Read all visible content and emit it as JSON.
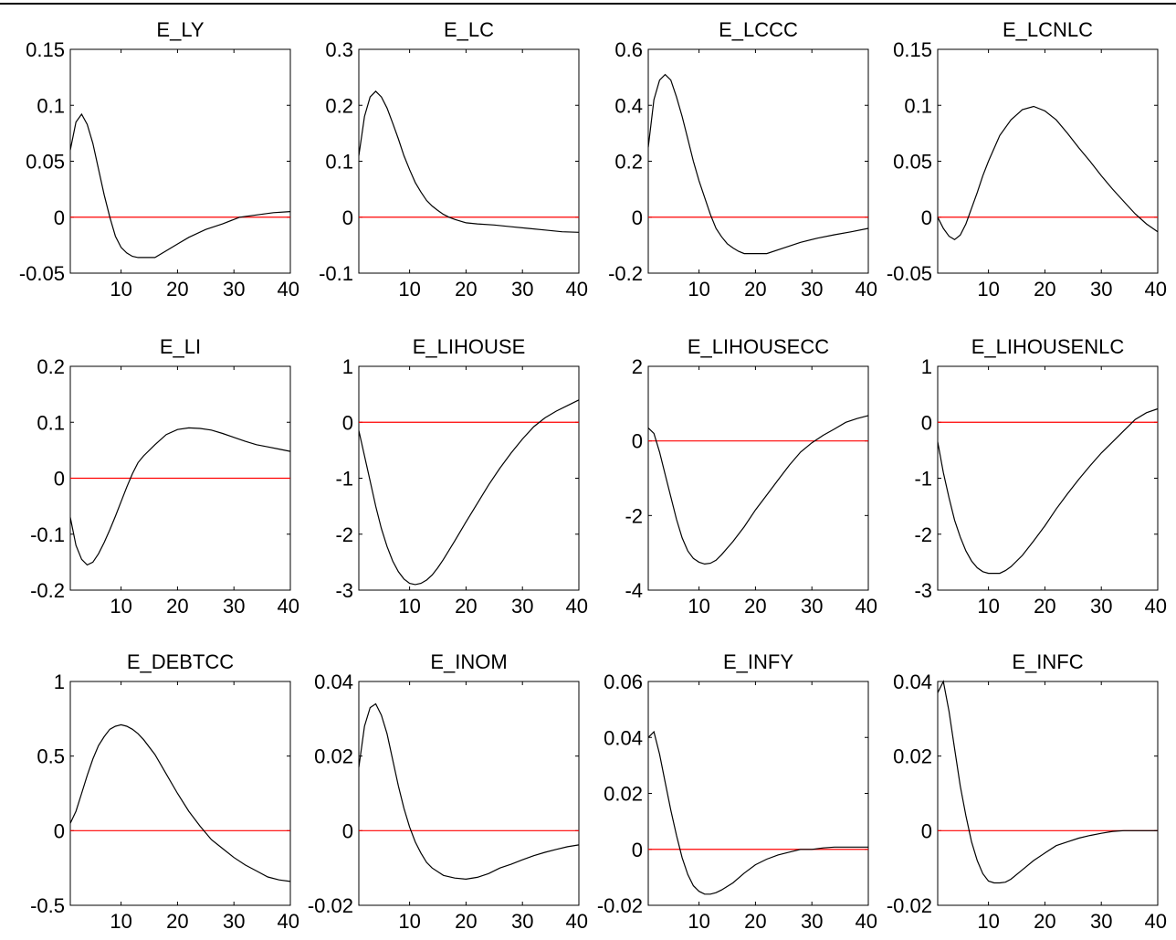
{
  "chart_data": [
    {
      "type": "line",
      "title": "E_LY",
      "xlim": [
        1,
        40
      ],
      "ylim": [
        -0.05,
        0.15
      ],
      "xticks": [
        10,
        20,
        30,
        40
      ],
      "xtick_labels": [
        "10",
        "20",
        "30",
        "40"
      ],
      "yticks": [
        -0.05,
        0,
        0.05,
        0.1,
        0.15
      ],
      "ytick_labels": [
        "-0.05",
        "0",
        "0.05",
        "0.1",
        "0.15"
      ],
      "zero_line": {
        "y": 0,
        "color": "#ff0000"
      },
      "x": [
        1,
        2,
        3,
        4,
        5,
        6,
        7,
        8,
        9,
        10,
        11,
        12,
        13,
        14,
        15,
        16,
        18,
        20,
        22,
        25,
        28,
        31,
        34,
        37,
        40
      ],
      "y": [
        0.06,
        0.085,
        0.092,
        0.083,
        0.066,
        0.043,
        0.02,
        0.0,
        -0.017,
        -0.027,
        -0.032,
        -0.035,
        -0.036,
        -0.036,
        -0.036,
        -0.036,
        -0.03,
        -0.024,
        -0.018,
        -0.011,
        -0.006,
        0.0,
        0.002,
        0.004,
        0.005
      ]
    },
    {
      "type": "line",
      "title": "E_LC",
      "xlim": [
        1,
        40
      ],
      "ylim": [
        -0.1,
        0.3
      ],
      "xticks": [
        10,
        20,
        30,
        40
      ],
      "xtick_labels": [
        "10",
        "20",
        "30",
        "40"
      ],
      "yticks": [
        -0.1,
        0,
        0.1,
        0.2,
        0.3
      ],
      "ytick_labels": [
        "-0.1",
        "0",
        "0.1",
        "0.2",
        "0.3"
      ],
      "zero_line": {
        "y": 0,
        "color": "#ff0000"
      },
      "x": [
        1,
        2,
        3,
        4,
        5,
        6,
        7,
        8,
        9,
        10,
        11,
        12,
        13,
        14,
        15,
        16,
        17,
        18,
        20,
        22,
        25,
        28,
        31,
        34,
        37,
        40
      ],
      "y": [
        0.11,
        0.18,
        0.215,
        0.225,
        0.215,
        0.195,
        0.168,
        0.14,
        0.11,
        0.085,
        0.062,
        0.045,
        0.03,
        0.02,
        0.012,
        0.005,
        0.0,
        -0.004,
        -0.01,
        -0.012,
        -0.014,
        -0.017,
        -0.02,
        -0.023,
        -0.026,
        -0.027
      ]
    },
    {
      "type": "line",
      "title": "E_LCCC",
      "xlim": [
        1,
        40
      ],
      "ylim": [
        -0.2,
        0.6
      ],
      "xticks": [
        10,
        20,
        30,
        40
      ],
      "xtick_labels": [
        "10",
        "20",
        "30",
        "40"
      ],
      "yticks": [
        -0.2,
        0,
        0.2,
        0.4,
        0.6
      ],
      "ytick_labels": [
        "-0.2",
        "0",
        "0.2",
        "0.4",
        "0.6"
      ],
      "zero_line": {
        "y": 0,
        "color": "#ff0000"
      },
      "x": [
        1,
        2,
        3,
        4,
        5,
        6,
        7,
        8,
        9,
        10,
        11,
        12,
        13,
        14,
        15,
        16,
        17,
        18,
        20,
        22,
        25,
        28,
        31,
        34,
        37,
        40
      ],
      "y": [
        0.25,
        0.42,
        0.49,
        0.51,
        0.49,
        0.43,
        0.36,
        0.28,
        0.2,
        0.13,
        0.07,
        0.01,
        -0.04,
        -0.07,
        -0.095,
        -0.11,
        -0.122,
        -0.13,
        -0.13,
        -0.13,
        -0.11,
        -0.09,
        -0.075,
        -0.063,
        -0.052,
        -0.04
      ]
    },
    {
      "type": "line",
      "title": "E_LCNLC",
      "xlim": [
        1,
        40
      ],
      "ylim": [
        -0.05,
        0.15
      ],
      "xticks": [
        10,
        20,
        30,
        40
      ],
      "xtick_labels": [
        "10",
        "20",
        "30",
        "40"
      ],
      "yticks": [
        -0.05,
        0,
        0.05,
        0.1,
        0.15
      ],
      "ytick_labels": [
        "-0.05",
        "0",
        "0.05",
        "0.1",
        "0.15"
      ],
      "zero_line": {
        "y": 0,
        "color": "#ff0000"
      },
      "x": [
        1,
        2,
        3,
        4,
        5,
        6,
        7,
        8,
        9,
        10,
        12,
        14,
        16,
        18,
        20,
        22,
        24,
        26,
        28,
        30,
        32,
        34,
        36,
        38,
        40
      ],
      "y": [
        0.0,
        -0.01,
        -0.017,
        -0.02,
        -0.016,
        -0.006,
        0.008,
        0.022,
        0.037,
        0.05,
        0.073,
        0.087,
        0.096,
        0.099,
        0.095,
        0.087,
        0.075,
        0.062,
        0.05,
        0.037,
        0.025,
        0.014,
        0.003,
        -0.006,
        -0.013
      ]
    },
    {
      "type": "line",
      "title": "E_LI",
      "xlim": [
        1,
        40
      ],
      "ylim": [
        -0.2,
        0.2
      ],
      "xticks": [
        10,
        20,
        30,
        40
      ],
      "xtick_labels": [
        "10",
        "20",
        "30",
        "40"
      ],
      "yticks": [
        -0.2,
        -0.1,
        0,
        0.1,
        0.2
      ],
      "ytick_labels": [
        "-0.2",
        "-0.1",
        "0",
        "0.1",
        "0.2"
      ],
      "zero_line": {
        "y": 0,
        "color": "#ff0000"
      },
      "x": [
        1,
        2,
        3,
        4,
        5,
        6,
        7,
        8,
        9,
        10,
        11,
        12,
        13,
        14,
        16,
        18,
        20,
        22,
        24,
        26,
        28,
        30,
        32,
        34,
        36,
        38,
        40
      ],
      "y": [
        -0.07,
        -0.12,
        -0.145,
        -0.155,
        -0.15,
        -0.135,
        -0.115,
        -0.092,
        -0.068,
        -0.042,
        -0.016,
        0.008,
        0.028,
        0.04,
        0.06,
        0.078,
        0.087,
        0.09,
        0.089,
        0.086,
        0.08,
        0.073,
        0.066,
        0.06,
        0.056,
        0.052,
        0.048
      ]
    },
    {
      "type": "line",
      "title": "E_LIHOUSE",
      "xlim": [
        1,
        40
      ],
      "ylim": [
        -3,
        1
      ],
      "xticks": [
        10,
        20,
        30,
        40
      ],
      "xtick_labels": [
        "10",
        "20",
        "30",
        "40"
      ],
      "yticks": [
        -3,
        -2,
        -1,
        0,
        1
      ],
      "ytick_labels": [
        "-3",
        "-2",
        "-1",
        "0",
        "1"
      ],
      "zero_line": {
        "y": 0,
        "color": "#ff0000"
      },
      "x": [
        1,
        2,
        3,
        4,
        5,
        6,
        7,
        8,
        9,
        10,
        11,
        12,
        13,
        14,
        15,
        16,
        18,
        20,
        22,
        24,
        26,
        28,
        30,
        32,
        34,
        36,
        38,
        40
      ],
      "y": [
        -0.15,
        -0.6,
        -1.05,
        -1.5,
        -1.9,
        -2.22,
        -2.48,
        -2.67,
        -2.8,
        -2.88,
        -2.9,
        -2.88,
        -2.82,
        -2.73,
        -2.6,
        -2.45,
        -2.12,
        -1.78,
        -1.45,
        -1.12,
        -0.82,
        -0.55,
        -0.3,
        -0.08,
        0.08,
        0.2,
        0.3,
        0.4
      ]
    },
    {
      "type": "line",
      "title": "E_LIHOUSECC",
      "xlim": [
        1,
        40
      ],
      "ylim": [
        -4,
        2
      ],
      "xticks": [
        10,
        20,
        30,
        40
      ],
      "xtick_labels": [
        "10",
        "20",
        "30",
        "40"
      ],
      "yticks": [
        -4,
        -2,
        0,
        2
      ],
      "ytick_labels": [
        "-4",
        "-2",
        "0",
        "2"
      ],
      "zero_line": {
        "y": 0,
        "color": "#ff0000"
      },
      "x": [
        1,
        2,
        3,
        4,
        5,
        6,
        7,
        8,
        9,
        10,
        11,
        12,
        13,
        14,
        16,
        18,
        20,
        22,
        24,
        26,
        28,
        30,
        32,
        34,
        36,
        38,
        40
      ],
      "y": [
        0.35,
        0.2,
        -0.3,
        -0.9,
        -1.5,
        -2.1,
        -2.6,
        -2.95,
        -3.15,
        -3.25,
        -3.3,
        -3.28,
        -3.2,
        -3.05,
        -2.7,
        -2.3,
        -1.85,
        -1.45,
        -1.05,
        -0.65,
        -0.3,
        -0.05,
        0.15,
        0.32,
        0.5,
        0.6,
        0.68
      ]
    },
    {
      "type": "line",
      "title": "E_LIHOUSENLC",
      "xlim": [
        1,
        40
      ],
      "ylim": [
        -3,
        1
      ],
      "xticks": [
        10,
        20,
        30,
        40
      ],
      "xtick_labels": [
        "10",
        "20",
        "30",
        "40"
      ],
      "yticks": [
        -3,
        -2,
        -1,
        0,
        1
      ],
      "ytick_labels": [
        "-3",
        "-2",
        "-1",
        "0",
        "1"
      ],
      "zero_line": {
        "y": 0,
        "color": "#ff0000"
      },
      "x": [
        1,
        2,
        3,
        4,
        5,
        6,
        7,
        8,
        9,
        10,
        11,
        12,
        13,
        14,
        16,
        18,
        20,
        22,
        24,
        26,
        28,
        30,
        32,
        34,
        36,
        38,
        40
      ],
      "y": [
        -0.35,
        -0.9,
        -1.35,
        -1.75,
        -2.05,
        -2.3,
        -2.48,
        -2.6,
        -2.67,
        -2.7,
        -2.7,
        -2.7,
        -2.65,
        -2.58,
        -2.38,
        -2.12,
        -1.85,
        -1.55,
        -1.28,
        -1.02,
        -0.78,
        -0.55,
        -0.35,
        -0.15,
        0.05,
        0.17,
        0.24
      ]
    },
    {
      "type": "line",
      "title": "E_DEBTCC",
      "xlim": [
        1,
        40
      ],
      "ylim": [
        -0.5,
        1
      ],
      "xticks": [
        10,
        20,
        30,
        40
      ],
      "xtick_labels": [
        "10",
        "20",
        "30",
        "40"
      ],
      "yticks": [
        -0.5,
        0,
        0.5,
        1
      ],
      "ytick_labels": [
        "-0.5",
        "0",
        "0.5",
        "1"
      ],
      "zero_line": {
        "y": 0,
        "color": "#ff0000"
      },
      "x": [
        1,
        2,
        3,
        4,
        5,
        6,
        7,
        8,
        9,
        10,
        11,
        12,
        13,
        14,
        16,
        18,
        20,
        22,
        24,
        26,
        28,
        30,
        32,
        34,
        36,
        38,
        40
      ],
      "y": [
        0.05,
        0.13,
        0.25,
        0.37,
        0.48,
        0.57,
        0.63,
        0.68,
        0.7,
        0.71,
        0.7,
        0.68,
        0.65,
        0.61,
        0.51,
        0.38,
        0.25,
        0.13,
        0.03,
        -0.06,
        -0.12,
        -0.18,
        -0.23,
        -0.27,
        -0.31,
        -0.33,
        -0.34
      ]
    },
    {
      "type": "line",
      "title": "E_INOM",
      "xlim": [
        1,
        40
      ],
      "ylim": [
        -0.02,
        0.04
      ],
      "xticks": [
        10,
        20,
        30,
        40
      ],
      "xtick_labels": [
        "10",
        "20",
        "30",
        "40"
      ],
      "yticks": [
        -0.02,
        0,
        0.02,
        0.04
      ],
      "ytick_labels": [
        "-0.02",
        "0",
        "0.02",
        "0.04"
      ],
      "zero_line": {
        "y": 0,
        "color": "#ff0000"
      },
      "x": [
        1,
        2,
        3,
        4,
        5,
        6,
        7,
        8,
        9,
        10,
        11,
        12,
        13,
        14,
        16,
        18,
        20,
        22,
        24,
        26,
        28,
        30,
        32,
        34,
        36,
        38,
        40
      ],
      "y": [
        0.017,
        0.028,
        0.033,
        0.034,
        0.031,
        0.026,
        0.019,
        0.012,
        0.006,
        0.001,
        -0.003,
        -0.006,
        -0.0085,
        -0.01,
        -0.012,
        -0.0127,
        -0.013,
        -0.0125,
        -0.0115,
        -0.01,
        -0.009,
        -0.0078,
        -0.0067,
        -0.0058,
        -0.005,
        -0.0043,
        -0.0038
      ]
    },
    {
      "type": "line",
      "title": "E_INFY",
      "xlim": [
        1,
        40
      ],
      "ylim": [
        -0.02,
        0.06
      ],
      "xticks": [
        10,
        20,
        30,
        40
      ],
      "xtick_labels": [
        "10",
        "20",
        "30",
        "40"
      ],
      "yticks": [
        -0.02,
        0,
        0.02,
        0.04,
        0.06
      ],
      "ytick_labels": [
        "-0.02",
        "0",
        "0.02",
        "0.04",
        "0.06"
      ],
      "zero_line": {
        "y": 0,
        "color": "#ff0000"
      },
      "x": [
        1,
        2,
        3,
        4,
        5,
        6,
        7,
        8,
        9,
        10,
        11,
        12,
        13,
        14,
        16,
        18,
        20,
        22,
        24,
        26,
        28,
        30,
        32,
        34,
        36,
        38,
        40
      ],
      "y": [
        0.04,
        0.042,
        0.034,
        0.024,
        0.014,
        0.005,
        -0.003,
        -0.009,
        -0.013,
        -0.015,
        -0.016,
        -0.016,
        -0.0155,
        -0.0145,
        -0.012,
        -0.0085,
        -0.0055,
        -0.0035,
        -0.002,
        -0.001,
        0.0,
        0.0,
        0.0005,
        0.0008,
        0.0008,
        0.0008,
        0.0008
      ]
    },
    {
      "type": "line",
      "title": "E_INFC",
      "xlim": [
        1,
        40
      ],
      "ylim": [
        -0.02,
        0.04
      ],
      "xticks": [
        10,
        20,
        30,
        40
      ],
      "xtick_labels": [
        "10",
        "20",
        "30",
        "40"
      ],
      "yticks": [
        -0.02,
        0,
        0.02,
        0.04
      ],
      "ytick_labels": [
        "-0.02",
        "0",
        "0.02",
        "0.04"
      ],
      "zero_line": {
        "y": 0,
        "color": "#ff0000"
      },
      "x": [
        1,
        2,
        3,
        4,
        5,
        6,
        7,
        8,
        9,
        10,
        11,
        12,
        13,
        14,
        16,
        18,
        20,
        22,
        24,
        26,
        28,
        30,
        32,
        34,
        36,
        38,
        40
      ],
      "y": [
        0.037,
        0.04,
        0.032,
        0.022,
        0.012,
        0.004,
        -0.003,
        -0.008,
        -0.0115,
        -0.0135,
        -0.014,
        -0.014,
        -0.0138,
        -0.013,
        -0.0105,
        -0.008,
        -0.006,
        -0.004,
        -0.003,
        -0.002,
        -0.0013,
        -0.0007,
        -0.0002,
        0.0,
        0.0,
        0.0,
        0.0
      ]
    }
  ]
}
